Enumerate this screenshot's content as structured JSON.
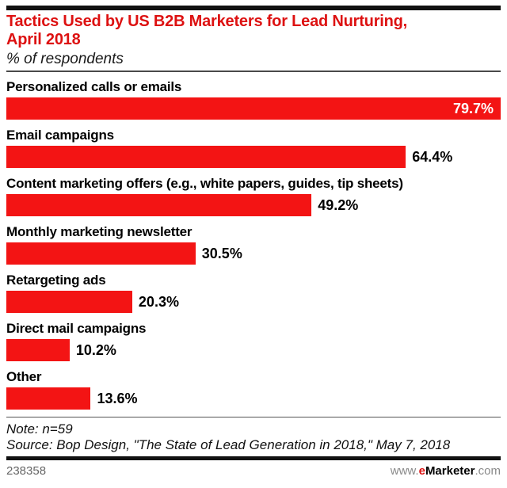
{
  "header": {
    "title_line1": "Tactics Used by US B2B Marketers for Lead Nurturing,",
    "title_line2": "April 2018",
    "subtitle": "% of respondents"
  },
  "chart_data": {
    "type": "bar",
    "orientation": "horizontal",
    "title": "Tactics Used by US B2B Marketers for Lead Nurturing, April 2018",
    "subtitle": "% of respondents",
    "categories": [
      "Personalized calls or emails",
      "Email campaigns",
      "Content marketing offers (e.g., white papers, guides, tip sheets)",
      "Monthly marketing newsletter",
      "Retargeting ads",
      "Direct mail campaigns",
      "Other"
    ],
    "values": [
      79.7,
      64.4,
      49.2,
      30.5,
      20.3,
      10.2,
      13.6
    ],
    "value_labels": [
      "79.7%",
      "64.4%",
      "49.2%",
      "30.5%",
      "20.3%",
      "10.2%",
      "13.6%"
    ],
    "xlim": [
      0,
      79.7
    ],
    "grid": false,
    "legend": false,
    "bar_color": "#f31414",
    "inside_label_color": "#ffffff",
    "outside_label_color": "#000000"
  },
  "footer": {
    "note": "Note: n=59",
    "source": "Source: Bop Design, \"The State of Lead Generation in 2018,\" May 7, 2018",
    "chart_id": "238358",
    "site_www": "www.",
    "site_e": "e",
    "site_marketer": "Marketer",
    "site_com": ".com"
  },
  "colors": {
    "title_red": "#dd1111",
    "bar_red": "#f31414",
    "rule_black": "#111111"
  }
}
